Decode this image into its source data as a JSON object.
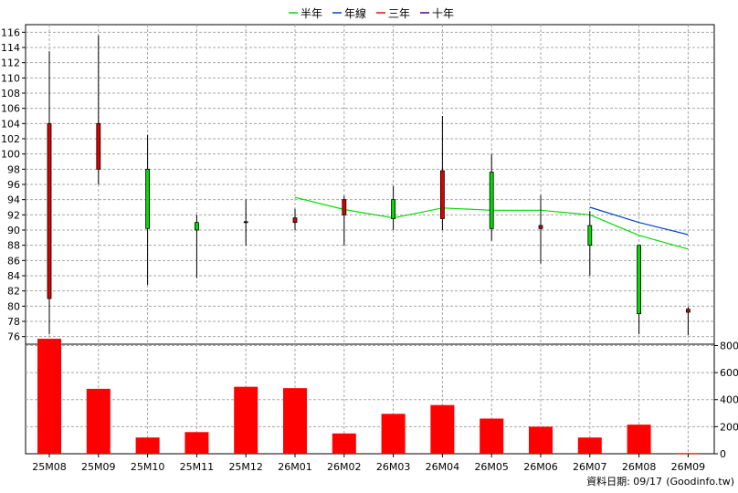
{
  "chart_data": [
    {
      "type": "candlestick",
      "legend": [
        {
          "name": "半年",
          "color": "#00dd00"
        },
        {
          "name": "年線",
          "color": "#0044cc"
        },
        {
          "name": "三年",
          "color": "#ff0000"
        },
        {
          "name": "十年",
          "color": "#4b0096"
        }
      ],
      "legend_position": "top-center",
      "categories": [
        "25M08",
        "25M09",
        "25M10",
        "25M11",
        "25M12",
        "26M01",
        "26M02",
        "26M03",
        "26M04",
        "26M05",
        "26M06",
        "26M07",
        "26M08",
        "26M09"
      ],
      "ohlc": [
        {
          "open": 81.0,
          "high": 113.5,
          "low": 76.3,
          "close": 104.0
        },
        {
          "open": 98.0,
          "high": 115.6,
          "low": 96.0,
          "close": 104.0
        },
        {
          "open": 98.0,
          "high": 102.5,
          "low": 82.8,
          "close": 90.2
        },
        {
          "open": 91.0,
          "high": 92.0,
          "low": 83.7,
          "close": 90.0
        },
        {
          "open": 91.1,
          "high": 94.0,
          "low": 88.0,
          "close": 91.1
        },
        {
          "open": 91.0,
          "high": 92.8,
          "low": 90.0,
          "close": 91.6
        },
        {
          "open": 92.0,
          "high": 94.5,
          "low": 88.0,
          "close": 94.0
        },
        {
          "open": 94.0,
          "high": 95.8,
          "low": 90.0,
          "close": 91.5
        },
        {
          "open": 91.5,
          "high": 105.0,
          "low": 90.0,
          "close": 97.8
        },
        {
          "open": 97.6,
          "high": 100.0,
          "low": 88.6,
          "close": 90.2
        },
        {
          "open": 90.2,
          "high": 94.6,
          "low": 85.6,
          "close": 90.6
        },
        {
          "open": 90.6,
          "high": 92.5,
          "low": 84.0,
          "close": 88.0
        },
        {
          "open": 88.0,
          "high": 88.0,
          "low": 76.3,
          "close": 79.0
        },
        {
          "open": 79.2,
          "high": 79.9,
          "low": 76.2,
          "close": 79.6
        }
      ],
      "series": [
        {
          "name": "半年",
          "color": "#00dd00",
          "values": [
            null,
            null,
            null,
            null,
            null,
            94.3,
            92.7,
            91.6,
            92.9,
            92.6,
            92.6,
            92.0,
            89.3,
            87.5
          ]
        },
        {
          "name": "年線",
          "color": "#0044cc",
          "values": [
            null,
            null,
            null,
            null,
            null,
            null,
            null,
            null,
            null,
            null,
            null,
            93.0,
            91.0,
            89.4
          ]
        }
      ],
      "ylim": [
        75,
        117
      ],
      "yticks": [
        76,
        78,
        80,
        82,
        84,
        86,
        88,
        90,
        92,
        94,
        96,
        98,
        100,
        102,
        104,
        106,
        108,
        110,
        112,
        114,
        116
      ],
      "grid": true
    },
    {
      "type": "bar",
      "categories": [
        "25M08",
        "25M09",
        "25M10",
        "25M11",
        "25M12",
        "26M01",
        "26M02",
        "26M03",
        "26M04",
        "26M05",
        "26M06",
        "26M07",
        "26M08",
        "26M09"
      ],
      "values": [
        850,
        480,
        120,
        160,
        495,
        485,
        150,
        295,
        360,
        260,
        200,
        120,
        215,
        5
      ],
      "bar_color": "#ff0000",
      "ylim": [
        0,
        810
      ],
      "yticks": [
        0,
        200,
        400,
        600,
        800
      ],
      "grid": true
    }
  ],
  "footer": {
    "label": "資料日期: 09/17",
    "source": "(Goodinfo.tw)"
  }
}
